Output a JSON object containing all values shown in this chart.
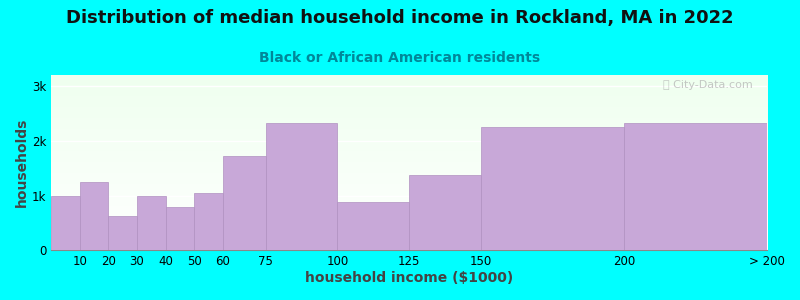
{
  "title": "Distribution of median household income in Rockland, MA in 2022",
  "subtitle": "Black or African American residents",
  "xlabel": "household income ($1000)",
  "ylabel": "households",
  "bg_outer": "#00FFFF",
  "bg_inner_top": "#efffef",
  "bg_inner_bottom": "#ffffff",
  "bar_color": "#c8a8d8",
  "bar_edge_color": "#b090c0",
  "bin_edges": [
    0,
    10,
    20,
    30,
    40,
    50,
    60,
    75,
    100,
    125,
    150,
    200,
    250
  ],
  "bin_labels": [
    "10",
    "20",
    "30",
    "40",
    "50",
    "60",
    "75",
    "100",
    "125",
    "150",
    "200",
    "> 200"
  ],
  "heights": [
    1000,
    1250,
    620,
    1000,
    800,
    1050,
    1720,
    2330,
    880,
    1380,
    2250,
    2330
  ],
  "ylim": [
    0,
    3200
  ],
  "yticks": [
    0,
    1000,
    2000,
    3000
  ],
  "ytick_labels": [
    "0",
    "1k",
    "2k",
    "3k"
  ],
  "title_fontsize": 13,
  "subtitle_fontsize": 10,
  "axis_label_fontsize": 10,
  "watermark_text": "ⓘ City-Data.com",
  "watermark_color": "#b0b0b0"
}
